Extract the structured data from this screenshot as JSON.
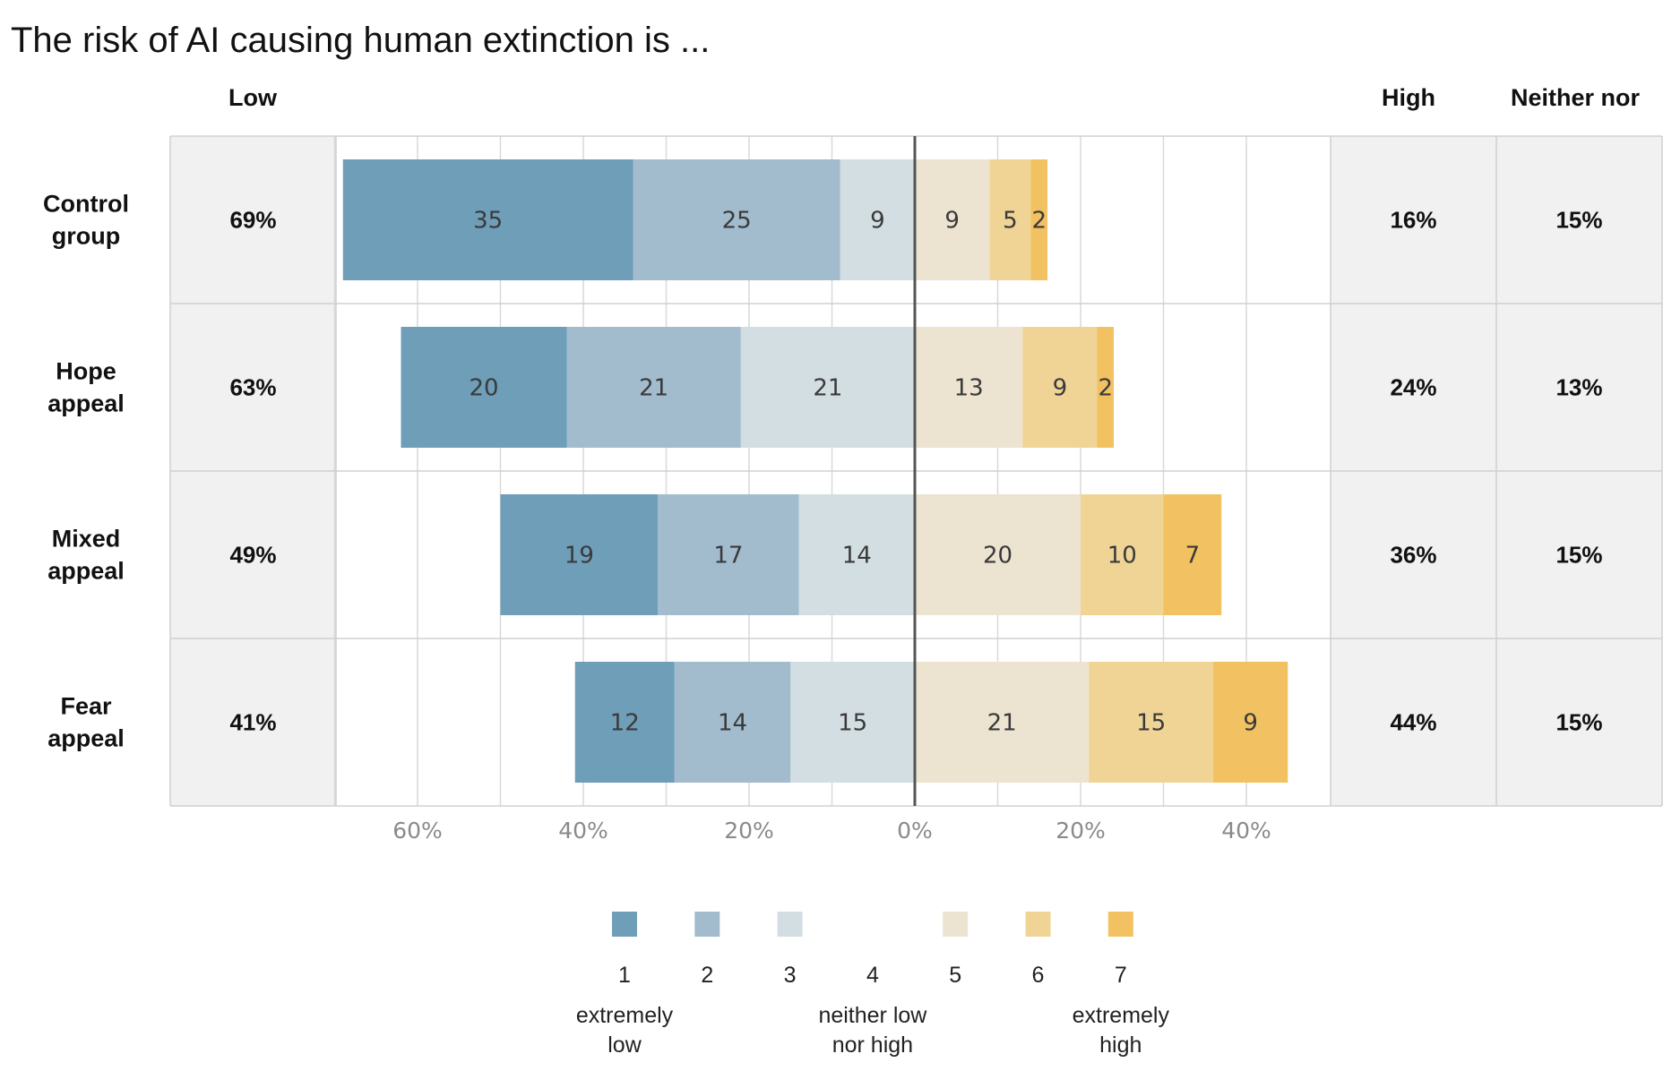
{
  "chart_data": {
    "type": "bar",
    "orientation": "horizontal-diverging",
    "stacked": true,
    "title": "The risk of AI causing human extinction is ...",
    "column_headers": {
      "low": "Low",
      "high": "High",
      "neither": "Neither nor"
    },
    "categories": [
      {
        "label_lines": [
          "Control",
          "group"
        ],
        "low": "69%",
        "high": "16%",
        "neither": "15%"
      },
      {
        "label_lines": [
          "Hope",
          "appeal"
        ],
        "low": "63%",
        "high": "24%",
        "neither": "13%"
      },
      {
        "label_lines": [
          "Mixed",
          "appeal"
        ],
        "low": "49%",
        "high": "36%",
        "neither": "15%"
      },
      {
        "label_lines": [
          "Fear",
          "appeal"
        ],
        "low": "41%",
        "high": "44%",
        "neither": "15%"
      }
    ],
    "series": [
      {
        "name": "1",
        "side": "low",
        "color": "#6f9eb9",
        "values": [
          35,
          20,
          19,
          12
        ]
      },
      {
        "name": "2",
        "side": "low",
        "color": "#a2bccd",
        "values": [
          25,
          21,
          17,
          14
        ]
      },
      {
        "name": "3",
        "side": "low",
        "color": "#d3dee3",
        "values": [
          9,
          21,
          14,
          15
        ]
      },
      {
        "name": "5",
        "side": "high",
        "color": "#ece3d1",
        "values": [
          9,
          13,
          20,
          21
        ]
      },
      {
        "name": "6",
        "side": "high",
        "color": "#efd496",
        "values": [
          5,
          9,
          10,
          15
        ]
      },
      {
        "name": "7",
        "side": "high",
        "color": "#f2c262",
        "values": [
          2,
          2,
          7,
          9
        ]
      }
    ],
    "x_ticks": [
      "60%",
      "40%",
      "20%",
      "0%",
      "20%",
      "40%"
    ],
    "x_tick_values": [
      -60,
      -40,
      -20,
      0,
      20,
      40
    ],
    "xlim": [
      -90,
      50
    ],
    "grid": true,
    "legend": {
      "position": "bottom",
      "items": [
        {
          "key": "1",
          "color": "#6f9eb9",
          "desc": [
            "extremely",
            "low"
          ]
        },
        {
          "key": "2",
          "color": "#a2bccd",
          "desc": []
        },
        {
          "key": "3",
          "color": "#d3dee3",
          "desc": []
        },
        {
          "key": "4",
          "color": null,
          "desc": [
            "neither low",
            "nor high"
          ]
        },
        {
          "key": "5",
          "color": "#ece3d1",
          "desc": []
        },
        {
          "key": "6",
          "color": "#efd496",
          "desc": []
        },
        {
          "key": "7",
          "color": "#f2c262",
          "desc": [
            "extremely",
            "high"
          ]
        }
      ]
    }
  }
}
